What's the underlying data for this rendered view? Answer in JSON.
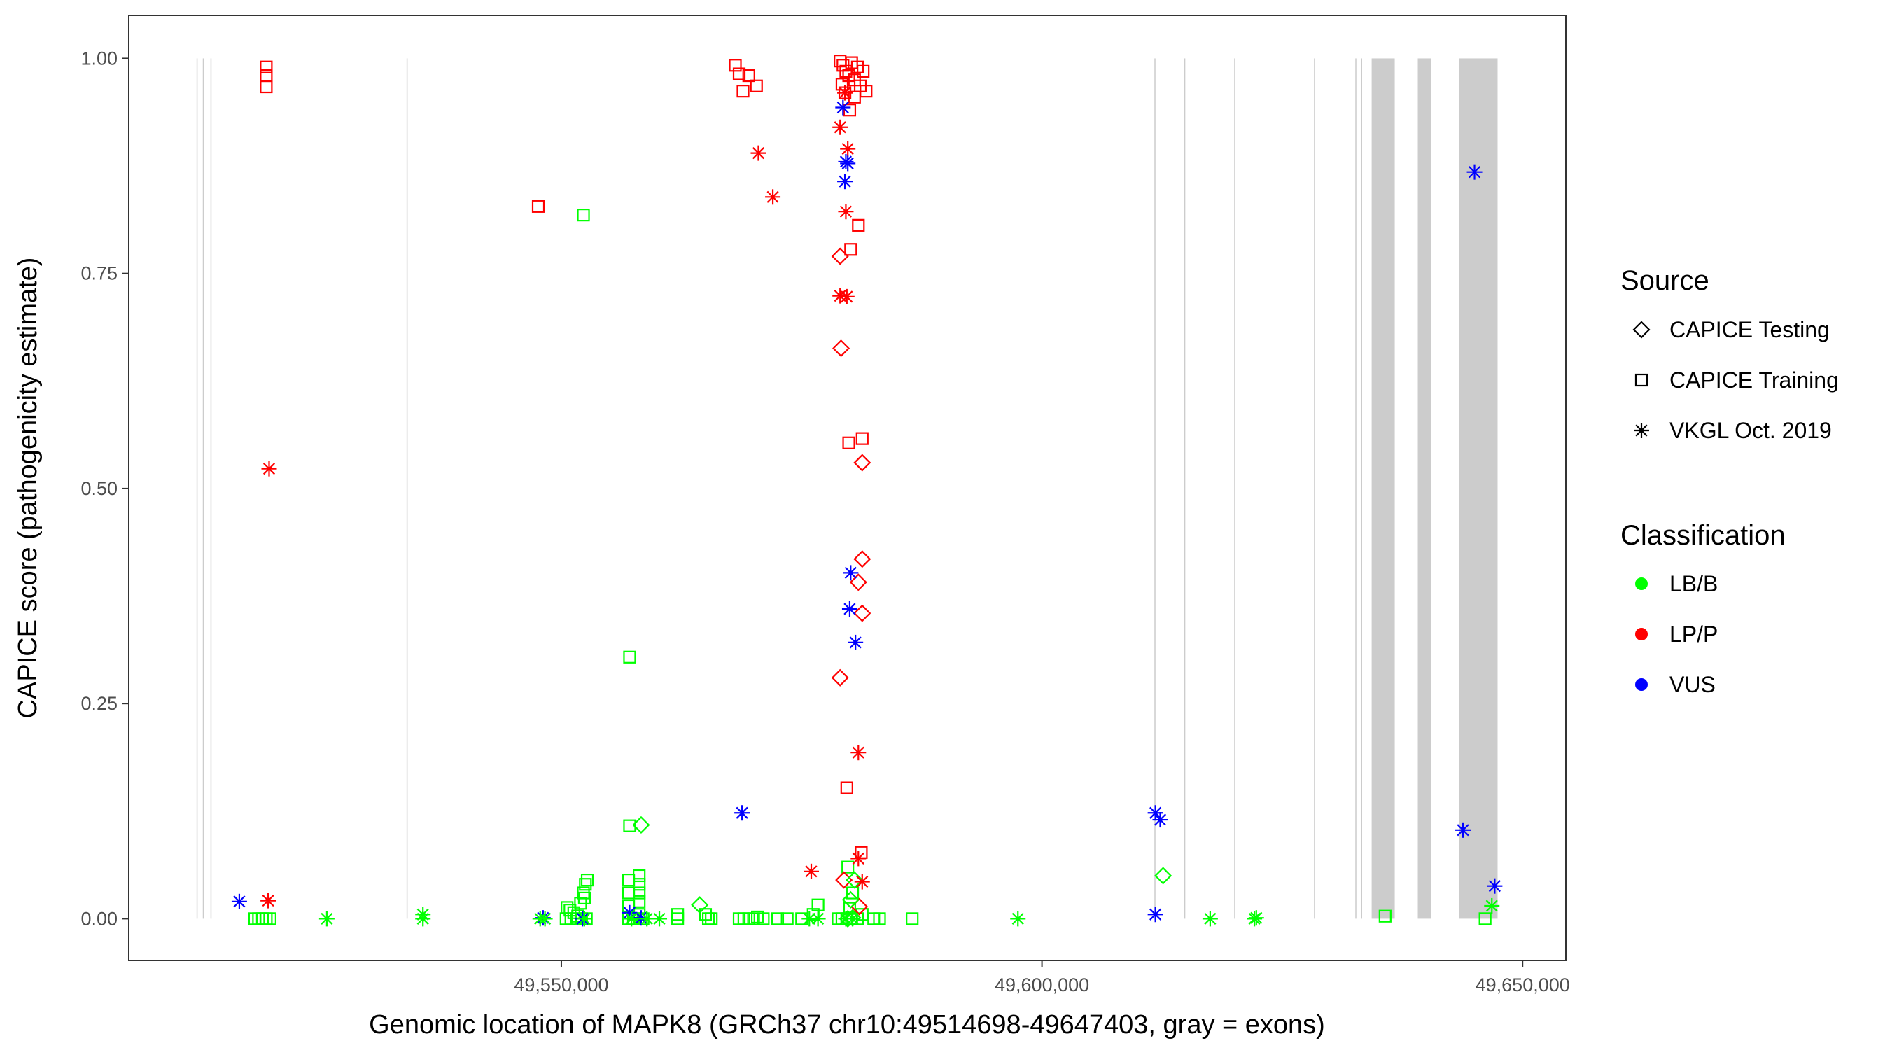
{
  "chart_data": {
    "type": "scatter",
    "title": "",
    "xlabel": "Genomic location of MAPK8 (GRCh37 chr10:49514698-49647403, gray = exons)",
    "ylabel": "CAPICE score (pathogenicity estimate)",
    "xlim": [
      49505000,
      49654500
    ],
    "ylim": [
      -0.0485,
      1.05
    ],
    "x_ticks": [
      49550000,
      49600000,
      49650000
    ],
    "x_tick_labels": [
      "49,550,000",
      "49,600,000",
      "49,650,000"
    ],
    "y_ticks": [
      0,
      0.25,
      0.5,
      0.75,
      1.0
    ],
    "y_tick_labels": [
      "0.00",
      "0.25",
      "0.50",
      "0.75",
      "1.00"
    ],
    "grid": false,
    "background": "#ffffff",
    "panel_border": "#333333",
    "exon_color": "#cccccc",
    "exons": [
      [
        49512050,
        49512150
      ],
      [
        49512700,
        49512800
      ],
      [
        49513500,
        49513600
      ],
      [
        49533900,
        49534000
      ],
      [
        49611700,
        49611800
      ],
      [
        49614800,
        49614900
      ],
      [
        49620000,
        49620100
      ],
      [
        49628300,
        49628400
      ],
      [
        49632600,
        49632700
      ],
      [
        49633200,
        49633300
      ],
      [
        49634300,
        49636700
      ],
      [
        49639100,
        49640500
      ],
      [
        49643400,
        49647400
      ]
    ],
    "legend_position": "right",
    "shape_legend": {
      "title": "Source",
      "entries": [
        {
          "label": "CAPICE Testing",
          "shape": "diamond"
        },
        {
          "label": "CAPICE Training",
          "shape": "square"
        },
        {
          "label": "VKGL Oct. 2019",
          "shape": "star"
        }
      ]
    },
    "color_legend": {
      "title": "Classification",
      "entries": [
        {
          "label": "LB/B",
          "color": "#00ff00"
        },
        {
          "label": "LP/P",
          "color": "#ff0000"
        },
        {
          "label": "VUS",
          "color": "#0000ff"
        }
      ]
    },
    "series": [
      {
        "source": "CAPICE Training",
        "classification": "LP/P",
        "points": [
          [
            49519300,
            0.99
          ],
          [
            49519300,
            0.98
          ],
          [
            49519300,
            0.967
          ],
          [
            49547600,
            0.828
          ],
          [
            49568100,
            0.992
          ],
          [
            49568500,
            0.982
          ],
          [
            49568900,
            0.962
          ],
          [
            49569500,
            0.98
          ],
          [
            49570300,
            0.968
          ],
          [
            49579000,
            0.997
          ],
          [
            49579300,
            0.992
          ],
          [
            49579600,
            0.985
          ],
          [
            49579900,
            0.98
          ],
          [
            49580200,
            0.995
          ],
          [
            49580500,
            0.975
          ],
          [
            49580800,
            0.99
          ],
          [
            49581100,
            0.968
          ],
          [
            49581400,
            0.985
          ],
          [
            49581700,
            0.962
          ],
          [
            49579200,
            0.97
          ],
          [
            49579500,
            0.96
          ],
          [
            49580000,
            0.94
          ],
          [
            49580500,
            0.955
          ],
          [
            49580100,
            0.778
          ],
          [
            49580900,
            0.806
          ],
          [
            49579900,
            0.553
          ],
          [
            49581300,
            0.558
          ],
          [
            49579700,
            0.152
          ],
          [
            49581200,
            0.077
          ]
        ]
      },
      {
        "source": "CAPICE Training",
        "classification": "LB/B",
        "points": [
          [
            49518100,
            0.0
          ],
          [
            49518500,
            0.0
          ],
          [
            49518900,
            0.0
          ],
          [
            49519300,
            0.0
          ],
          [
            49519700,
            0.0
          ],
          [
            49552300,
            0.818
          ],
          [
            49557100,
            0.304
          ],
          [
            49557100,
            0.108
          ],
          [
            49550600,
            0.013
          ],
          [
            49550900,
            0.01
          ],
          [
            49551300,
            0.007
          ],
          [
            49551700,
            0.003
          ],
          [
            49552000,
            0.018
          ],
          [
            49552300,
            0.03
          ],
          [
            49552500,
            0.04
          ],
          [
            49552700,
            0.045
          ],
          [
            49552400,
            0.024
          ],
          [
            49550500,
            0.0
          ],
          [
            49551000,
            0.0
          ],
          [
            49551600,
            0.0
          ],
          [
            49552100,
            0.0
          ],
          [
            49552600,
            0.0
          ],
          [
            49557000,
            0.045
          ],
          [
            49557000,
            0.03
          ],
          [
            49557000,
            0.015
          ],
          [
            49557000,
            0.0
          ],
          [
            49558100,
            0.05
          ],
          [
            49558100,
            0.04
          ],
          [
            49558100,
            0.03
          ],
          [
            49558100,
            0.02
          ],
          [
            49558100,
            0.005
          ],
          [
            49557500,
            0.0
          ],
          [
            49558500,
            0.0
          ],
          [
            49562100,
            0.005
          ],
          [
            49562100,
            0.0
          ],
          [
            49565000,
            0.005
          ],
          [
            49565300,
            0.0
          ],
          [
            49565600,
            0.0
          ],
          [
            49568500,
            0.0
          ],
          [
            49569000,
            0.0
          ],
          [
            49569500,
            0.0
          ],
          [
            49570000,
            0.0
          ],
          [
            49570400,
            0.002
          ],
          [
            49571000,
            0.0
          ],
          [
            49572500,
            0.0
          ],
          [
            49573500,
            0.0
          ],
          [
            49575000,
            0.0
          ],
          [
            49576200,
            0.005
          ],
          [
            49576700,
            0.016
          ],
          [
            49578800,
            0.0
          ],
          [
            49579200,
            0.0
          ],
          [
            49579700,
            0.0
          ],
          [
            49580200,
            0.0
          ],
          [
            49580800,
            0.0
          ],
          [
            49581300,
            0.005
          ],
          [
            49579800,
            0.06
          ],
          [
            49580300,
            0.03
          ],
          [
            49580000,
            0.012
          ],
          [
            49582500,
            0.0
          ],
          [
            49583100,
            0.0
          ],
          [
            49586500,
            0.0
          ],
          [
            49635700,
            0.003
          ],
          [
            49646100,
            0.0
          ]
        ]
      },
      {
        "source": "CAPICE Testing",
        "classification": "LP/P",
        "points": [
          [
            49579000,
            0.77
          ],
          [
            49579100,
            0.663
          ],
          [
            49581300,
            0.53
          ],
          [
            49581300,
            0.418
          ],
          [
            49580900,
            0.391
          ],
          [
            49581300,
            0.355
          ],
          [
            49579000,
            0.28
          ],
          [
            49579400,
            0.045
          ],
          [
            49581000,
            0.014
          ]
        ]
      },
      {
        "source": "CAPICE Testing",
        "classification": "LB/B",
        "points": [
          [
            49558300,
            0.109
          ],
          [
            49564400,
            0.016
          ],
          [
            49612600,
            0.05
          ],
          [
            49580100,
            0.022
          ],
          [
            49580500,
            0.045
          ],
          [
            49579800,
            0.0
          ],
          [
            49580300,
            0.001
          ]
        ]
      },
      {
        "source": "VKGL Oct. 2019",
        "classification": "LP/P",
        "points": [
          [
            49519600,
            0.523
          ],
          [
            49519500,
            0.021
          ],
          [
            49570500,
            0.89
          ],
          [
            49572000,
            0.839
          ],
          [
            49579000,
            0.92
          ],
          [
            49579800,
            0.895
          ],
          [
            49579500,
            0.96
          ],
          [
            49579600,
            0.822
          ],
          [
            49579000,
            0.724
          ],
          [
            49579700,
            0.723
          ],
          [
            49580900,
            0.193
          ],
          [
            49580900,
            0.07
          ],
          [
            49576000,
            0.055
          ],
          [
            49581300,
            0.043
          ]
        ]
      },
      {
        "source": "VKGL Oct. 2019",
        "classification": "VUS",
        "points": [
          [
            49516500,
            0.02
          ],
          [
            49548100,
            0.001
          ],
          [
            49552200,
            0.0
          ],
          [
            49557100,
            0.007
          ],
          [
            49558300,
            0.001
          ],
          [
            49568800,
            0.123
          ],
          [
            49579300,
            0.943
          ],
          [
            49579600,
            0.88
          ],
          [
            49579800,
            0.878
          ],
          [
            49579500,
            0.857
          ],
          [
            49580100,
            0.402
          ],
          [
            49580000,
            0.36
          ],
          [
            49580600,
            0.321
          ],
          [
            49611800,
            0.123
          ],
          [
            49612300,
            0.115
          ],
          [
            49611800,
            0.005
          ],
          [
            49645000,
            0.868
          ],
          [
            49643800,
            0.103
          ],
          [
            49647100,
            0.038
          ]
        ]
      },
      {
        "source": "VKGL Oct. 2019",
        "classification": "LB/B",
        "points": [
          [
            49525600,
            0.0
          ],
          [
            49535600,
            0.005
          ],
          [
            49535600,
            0.0
          ],
          [
            49547800,
            0.0
          ],
          [
            49548300,
            0.0
          ],
          [
            49552400,
            0.0
          ],
          [
            49557300,
            0.0
          ],
          [
            49558900,
            0.0
          ],
          [
            49560200,
            0.0
          ],
          [
            49575800,
            0.0
          ],
          [
            49576700,
            0.0
          ],
          [
            49580300,
            0.0
          ],
          [
            49579600,
            0.0
          ],
          [
            49597500,
            0.0
          ],
          [
            49617500,
            0.0
          ],
          [
            49622100,
            0.0
          ],
          [
            49622300,
            0.001
          ],
          [
            49646800,
            0.015
          ]
        ]
      }
    ]
  }
}
